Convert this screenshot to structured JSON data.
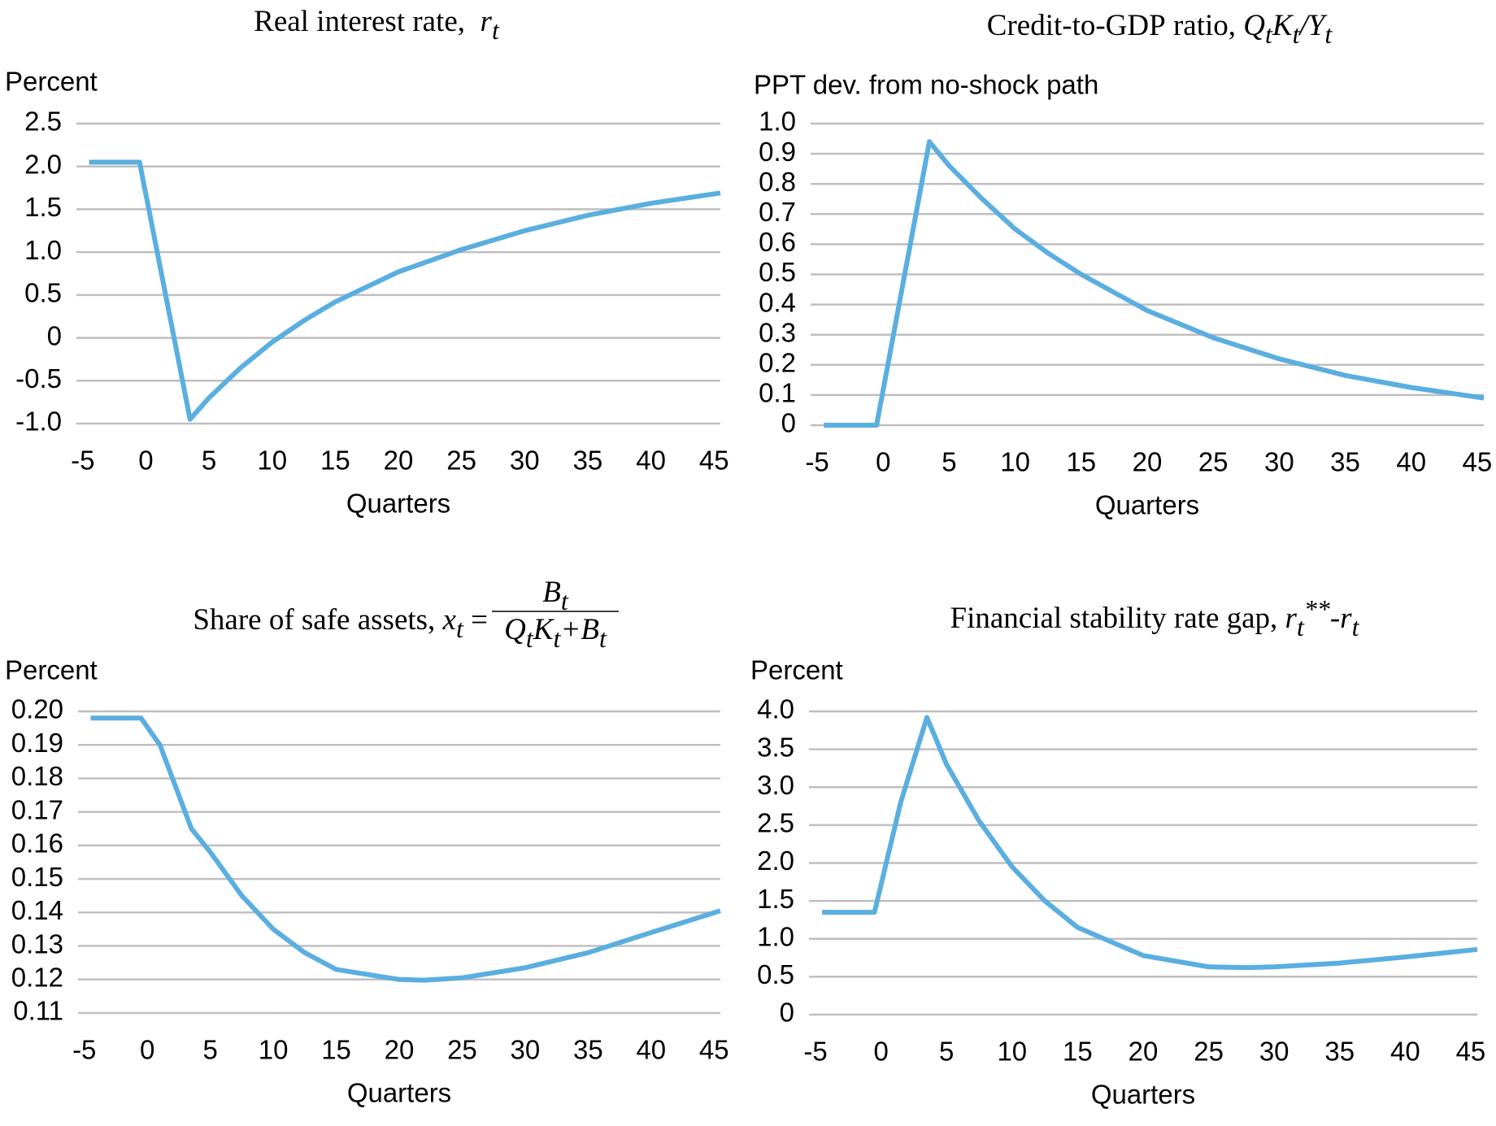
{
  "chart_data": [
    {
      "type": "line",
      "title_parts": [
        {
          "text": "Real interest rate,  "
        },
        {
          "text": "r",
          "style": "italic"
        },
        {
          "text": "t",
          "style": "sub"
        }
      ],
      "ylabel": "Percent",
      "xlabel": "Quarters",
      "color": "#5aaee0",
      "x": [
        -4.5,
        -0.5,
        3.5,
        5,
        7.5,
        10,
        12.5,
        15,
        20,
        25,
        30,
        35,
        40,
        45.5
      ],
      "values": [
        2.05,
        2.05,
        -0.95,
        -0.7,
        -0.35,
        -0.05,
        0.2,
        0.42,
        0.77,
        1.03,
        1.25,
        1.43,
        1.57,
        1.69
      ],
      "xlim": [
        -5.5,
        45.5
      ],
      "xticks": [
        -5,
        0,
        5,
        10,
        15,
        20,
        25,
        30,
        35,
        40,
        45
      ],
      "ylim": [
        -1,
        2.5
      ],
      "yticks": [
        {
          "value": -1,
          "label": "-1.0"
        },
        -0.5,
        0,
        0.5,
        {
          "value": 1,
          "label": "1.0"
        },
        1.5,
        {
          "value": 2,
          "label": "2.0"
        },
        2.5
      ],
      "grid": true
    },
    {
      "type": "line",
      "title_parts": [
        {
          "text": "Credit-to-GDP ratio, "
        },
        {
          "text": "Q",
          "style": "italic"
        },
        {
          "text": "t",
          "style": "sub"
        },
        {
          "text": "K",
          "style": "italic"
        },
        {
          "text": "t",
          "style": "sub"
        },
        {
          "text": "/Y",
          "style": "italic"
        },
        {
          "text": "t",
          "style": "sub"
        }
      ],
      "ylabel": "PPT dev. from no-shock path",
      "xlabel": "Quarters",
      "color": "#5aaee0",
      "x": [
        -4.5,
        -0.5,
        3.5,
        5,
        7.5,
        10,
        12.5,
        15,
        20,
        25,
        30,
        35,
        40,
        45.5
      ],
      "values": [
        0,
        0,
        0.94,
        0.86,
        0.75,
        0.65,
        0.57,
        0.5,
        0.38,
        0.29,
        0.22,
        0.165,
        0.125,
        0.09
      ],
      "xlim": [
        -5.5,
        45.5
      ],
      "xticks": [
        -5,
        0,
        5,
        10,
        15,
        20,
        25,
        30,
        35,
        40,
        45
      ],
      "ylim": [
        0,
        1
      ],
      "yticks": [
        0,
        0.1,
        0.2,
        0.3,
        0.4,
        0.5,
        0.6,
        0.7,
        0.8,
        0.9,
        {
          "value": 1,
          "label": "1.0"
        }
      ],
      "grid": true
    },
    {
      "type": "line",
      "title_parts": [
        {
          "text": "Share of safe assets, "
        },
        {
          "text": "x",
          "style": "italic"
        },
        {
          "text": "t",
          "style": "sub"
        },
        {
          "text": " ="
        }
      ],
      "fraction": {
        "numerator": [
          {
            "text": "B",
            "style": "italic"
          },
          {
            "text": "t",
            "style": "sub"
          }
        ],
        "denominator": [
          {
            "text": "Q",
            "style": "italic"
          },
          {
            "text": "t",
            "style": "sub"
          },
          {
            "text": "K",
            "style": "italic"
          },
          {
            "text": "t",
            "style": "sub"
          },
          {
            "text": "+B",
            "style": "italic"
          },
          {
            "text": "t",
            "style": "sub"
          }
        ]
      },
      "ylabel": "Percent",
      "xlabel": "Quarters",
      "color": "#5aaee0",
      "x": [
        -4.5,
        -0.5,
        1,
        2,
        3.5,
        5,
        7.5,
        10,
        12.5,
        15,
        20,
        22,
        25,
        30,
        35,
        40,
        45.5
      ],
      "values": [
        0.198,
        0.198,
        0.19,
        0.18,
        0.165,
        0.158,
        0.145,
        0.135,
        0.128,
        0.123,
        0.12,
        0.1198,
        0.1205,
        0.1235,
        0.128,
        0.134,
        0.1405
      ],
      "xlim": [
        -5.5,
        45.5
      ],
      "xticks": [
        -5,
        0,
        5,
        10,
        15,
        20,
        25,
        30,
        35,
        40,
        45
      ],
      "ylim": [
        0.11,
        0.2
      ],
      "yticks": [
        0.11,
        0.12,
        0.13,
        0.14,
        0.15,
        0.16,
        0.17,
        0.18,
        0.19,
        {
          "value": 0.2,
          "label": "0.20"
        }
      ],
      "grid": true
    },
    {
      "type": "line",
      "title_parts": [
        {
          "text": "Financial stability rate gap, "
        },
        {
          "text": "r",
          "style": "italic"
        },
        {
          "text": "t",
          "style": "sub"
        },
        {
          "text": "**",
          "style": "sup"
        },
        {
          "text": "-r",
          "style": "italic"
        },
        {
          "text": "t",
          "style": "sub"
        }
      ],
      "ylabel": "Percent",
      "xlabel": "Quarters",
      "color": "#5aaee0",
      "x": [
        -4.5,
        -0.5,
        1.5,
        3.5,
        5,
        7.5,
        10,
        12.5,
        15,
        20,
        25,
        28,
        30,
        35,
        40,
        45.5
      ],
      "values": [
        1.35,
        1.35,
        2.8,
        3.92,
        3.3,
        2.55,
        1.95,
        1.5,
        1.15,
        0.78,
        0.63,
        0.62,
        0.63,
        0.68,
        0.76,
        0.86
      ],
      "xlim": [
        -5.5,
        45.5
      ],
      "xticks": [
        -5,
        0,
        5,
        10,
        15,
        20,
        25,
        30,
        35,
        40,
        45
      ],
      "ylim": [
        0,
        4
      ],
      "yticks": [
        0,
        0.5,
        {
          "value": 1,
          "label": "1.0"
        },
        1.5,
        {
          "value": 2,
          "label": "2.0"
        },
        2.5,
        {
          "value": 3,
          "label": "3.0"
        },
        3.5,
        {
          "value": 4,
          "label": "4.0"
        }
      ],
      "grid": true
    }
  ]
}
